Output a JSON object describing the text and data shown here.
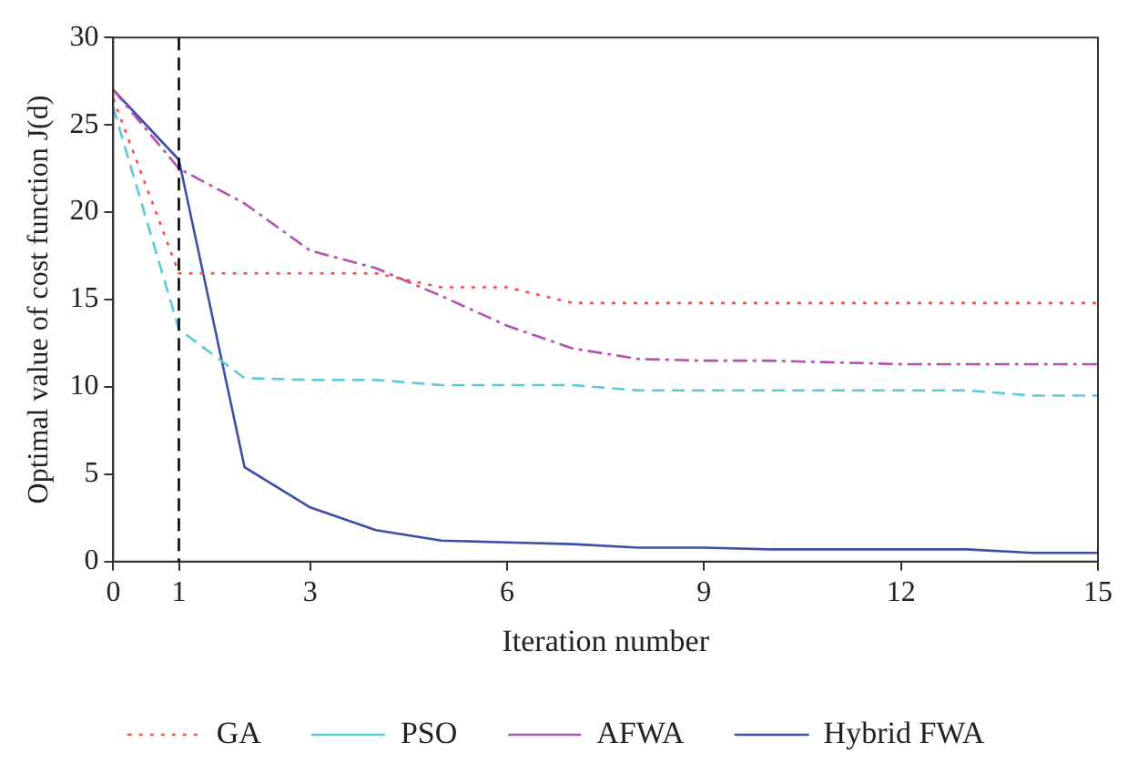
{
  "chart_data": {
    "type": "line",
    "xlabel": "Iteration number",
    "ylabel": "Optimal value of cost function J(d)",
    "x": [
      0,
      1,
      2,
      3,
      4,
      5,
      6,
      7,
      8,
      9,
      10,
      11,
      12,
      13,
      14,
      15
    ],
    "series": [
      {
        "name": "GA",
        "color": "#ff4a4a",
        "line_style": "dotted",
        "values": [
          26.5,
          16.5,
          16.5,
          16.5,
          16.5,
          15.7,
          15.7,
          14.8,
          14.8,
          14.8,
          14.8,
          14.8,
          14.8,
          14.8,
          14.8,
          14.8
        ]
      },
      {
        "name": "PSO",
        "color": "#5cc9d9",
        "line_style": "dashed",
        "values": [
          26,
          13.3,
          10.5,
          10.4,
          10.4,
          10.1,
          10.1,
          10.1,
          9.8,
          9.8,
          9.8,
          9.8,
          9.8,
          9.8,
          9.5,
          9.5
        ]
      },
      {
        "name": "AFWA",
        "color": "#b54fb0",
        "line_style": "dashdot",
        "values": [
          27,
          22.5,
          20.5,
          17.8,
          16.8,
          15.2,
          13.5,
          12.2,
          11.6,
          11.5,
          11.5,
          11.4,
          11.3,
          11.3,
          11.3,
          11.3
        ]
      },
      {
        "name": "Hybrid FWA",
        "color": "#3a4fa8",
        "line_style": "solid",
        "values": [
          27,
          23,
          5.4,
          3.1,
          1.8,
          1.2,
          1.1,
          1.0,
          0.8,
          0.8,
          0.7,
          0.7,
          0.7,
          0.7,
          0.5,
          0.5
        ]
      }
    ],
    "xlim": [
      0,
      15
    ],
    "xticks": [
      0,
      1,
      3,
      6,
      9,
      12,
      15
    ],
    "ylim": [
      0,
      30
    ],
    "yticks": [
      0,
      5,
      10,
      15,
      20,
      25,
      30
    ],
    "ref_lines": [
      {
        "axis": "x",
        "value": 1,
        "color": "#000000",
        "line_style": "dashed"
      }
    ],
    "grid": false,
    "legend": "bottom",
    "marker": "none"
  }
}
